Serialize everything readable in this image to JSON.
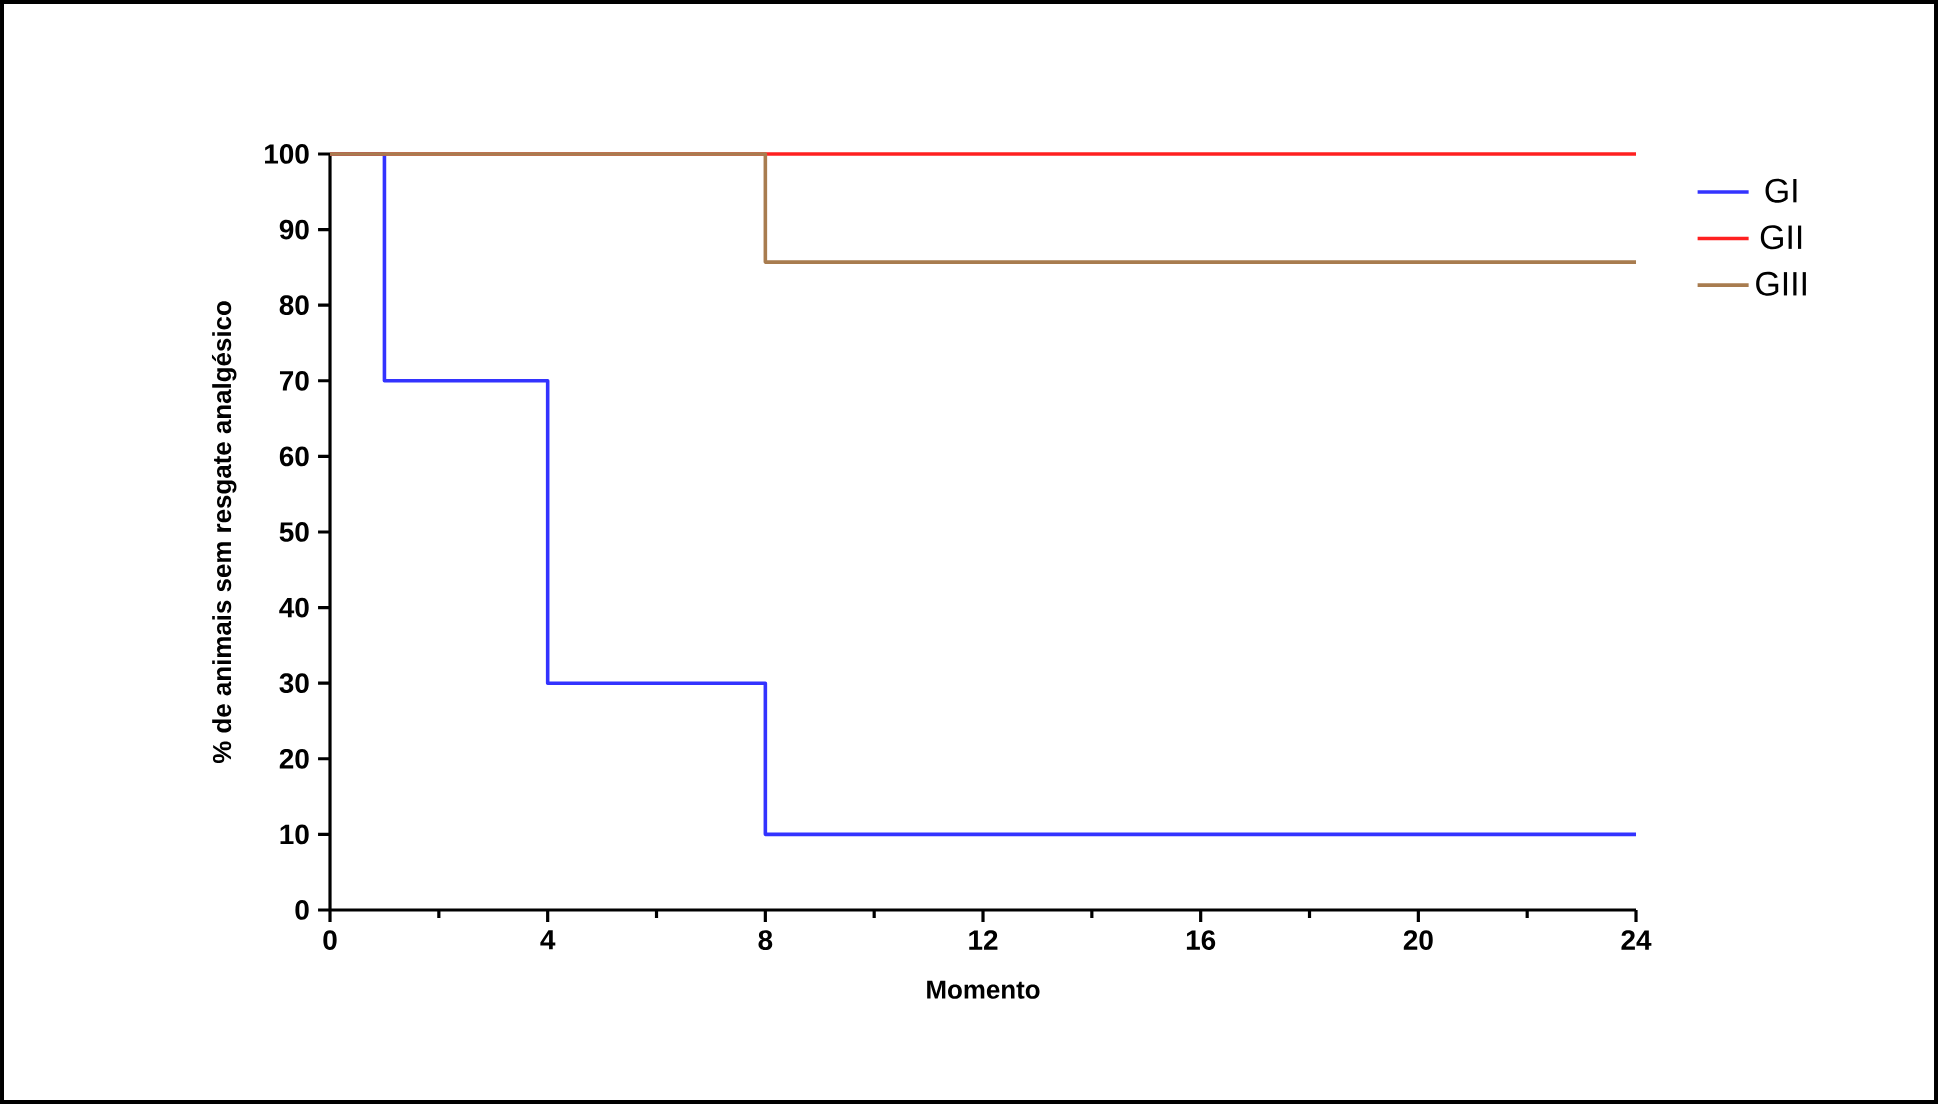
{
  "chart_data": {
    "type": "step",
    "xlabel": "Momento",
    "ylabel": "% de animais sem resgate analgésico",
    "xlim": [
      0,
      24
    ],
    "xticks": [
      0,
      4,
      8,
      12,
      16,
      20,
      24
    ],
    "ylim": [
      0,
      100
    ],
    "yticks": [
      0,
      10,
      20,
      30,
      40,
      50,
      60,
      70,
      80,
      90,
      100
    ],
    "grid": false,
    "legend": "right",
    "marker": "none",
    "line_style": "solid",
    "series": [
      {
        "name": "GI",
        "color": "#3333ff",
        "x": [
          0,
          1,
          4,
          8,
          24
        ],
        "values": [
          100,
          70,
          30,
          10,
          10
        ]
      },
      {
        "name": "GII",
        "color": "#ff2020",
        "x": [
          0,
          24
        ],
        "values": [
          100,
          100
        ]
      },
      {
        "name": "GIII",
        "color": "#a87c4f",
        "x": [
          0,
          8,
          24
        ],
        "values": [
          100,
          85.7,
          85.7
        ]
      }
    ]
  }
}
